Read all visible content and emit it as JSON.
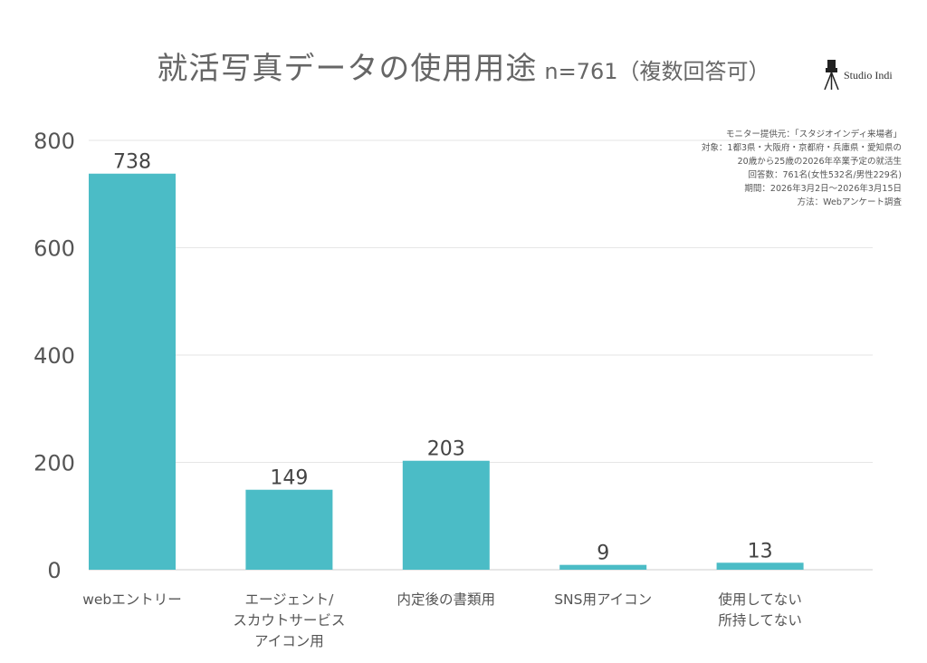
{
  "title": "就活写真データの使用用途",
  "subtitle": "n=761（複数回答可）",
  "logo_text": "Studio Indi",
  "notes": [
    "モニター提供元：「スタジオインディ来場者」",
    "対象：1都3県・大阪府・京都府・兵庫県・愛知県の",
    "20歳から25歳の2026年卒業予定の就活生",
    "回答数：761名(女性532名/男性229名)",
    "期間：2026年3月2日〜2026年3月15日",
    "方法：Webアンケート調査"
  ],
  "chart_data": {
    "type": "bar",
    "categories": [
      [
        "webエントリー"
      ],
      [
        "エージェント/",
        "スカウトサービス",
        "アイコン用"
      ],
      [
        "内定後の書類用"
      ],
      [
        "SNS用アイコン"
      ],
      [
        "使用してない",
        "所持してない"
      ]
    ],
    "values": [
      738,
      149,
      203,
      9,
      13
    ],
    "ylim": [
      0,
      800
    ],
    "yticks": [
      0,
      200,
      400,
      600,
      800
    ],
    "grid": true,
    "bar_color": "#4bbcc6",
    "grid_color": "#e6e6e6"
  }
}
